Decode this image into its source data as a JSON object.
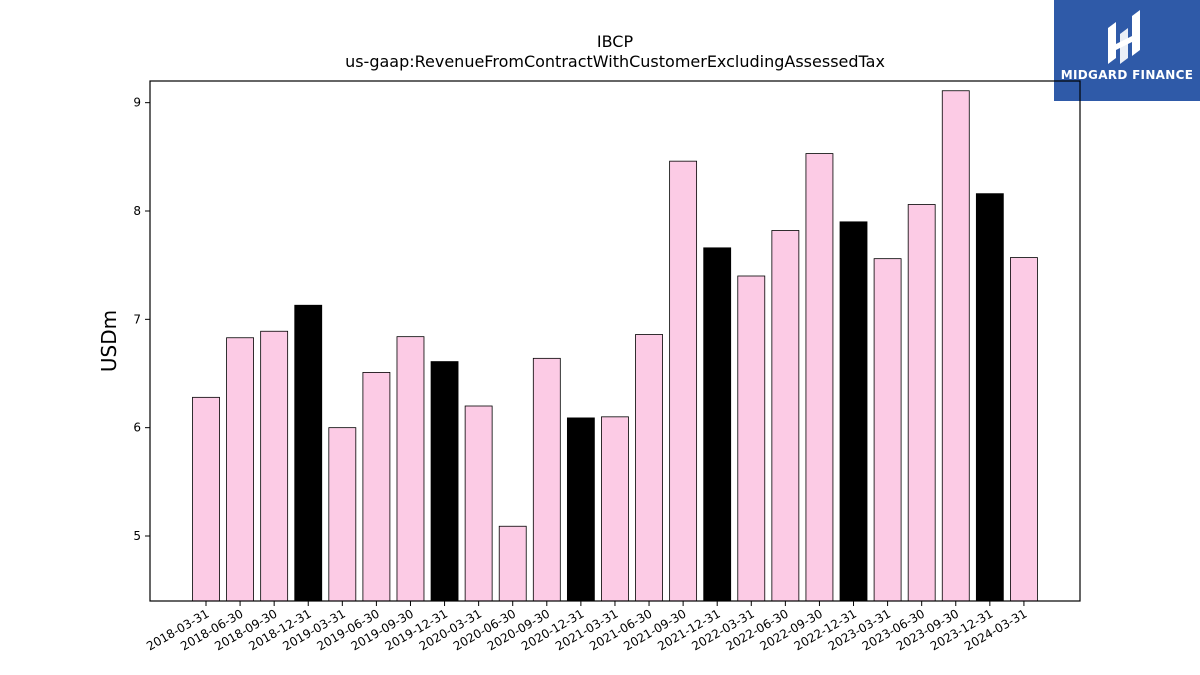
{
  "chart_data": {
    "type": "bar",
    "title": "IBCP",
    "subtitle": "us-gaap:RevenueFromContractWithCustomerExcludingAssessedTax",
    "ylabel": "USDm",
    "xlabel": "",
    "ylim": [
      4.4,
      9.2
    ],
    "yticks": [
      5,
      6,
      7,
      8,
      9
    ],
    "grid": false,
    "categories": [
      "2018-03-31",
      "2018-06-30",
      "2018-09-30",
      "2018-12-31",
      "2019-03-31",
      "2019-06-30",
      "2019-09-30",
      "2019-12-31",
      "2020-03-31",
      "2020-06-30",
      "2020-09-30",
      "2020-12-31",
      "2021-03-31",
      "2021-06-30",
      "2021-09-30",
      "2021-12-31",
      "2022-03-31",
      "2022-06-30",
      "2022-09-30",
      "2022-12-31",
      "2023-03-31",
      "2023-06-30",
      "2023-09-30",
      "2023-12-31",
      "2024-03-31"
    ],
    "values": [
      6.28,
      6.83,
      6.89,
      7.13,
      6.0,
      6.51,
      6.84,
      6.61,
      6.2,
      5.09,
      6.64,
      6.09,
      6.1,
      6.86,
      8.46,
      7.66,
      7.4,
      7.82,
      8.53,
      7.9,
      7.56,
      8.06,
      9.11,
      8.16,
      7.57
    ],
    "colors": {
      "quarter": "#fccbe5",
      "year_end": "#000000",
      "edge": "#000000"
    }
  },
  "logo": {
    "text": "MIDGARD FINANCE",
    "background": "#2f5aa8"
  }
}
